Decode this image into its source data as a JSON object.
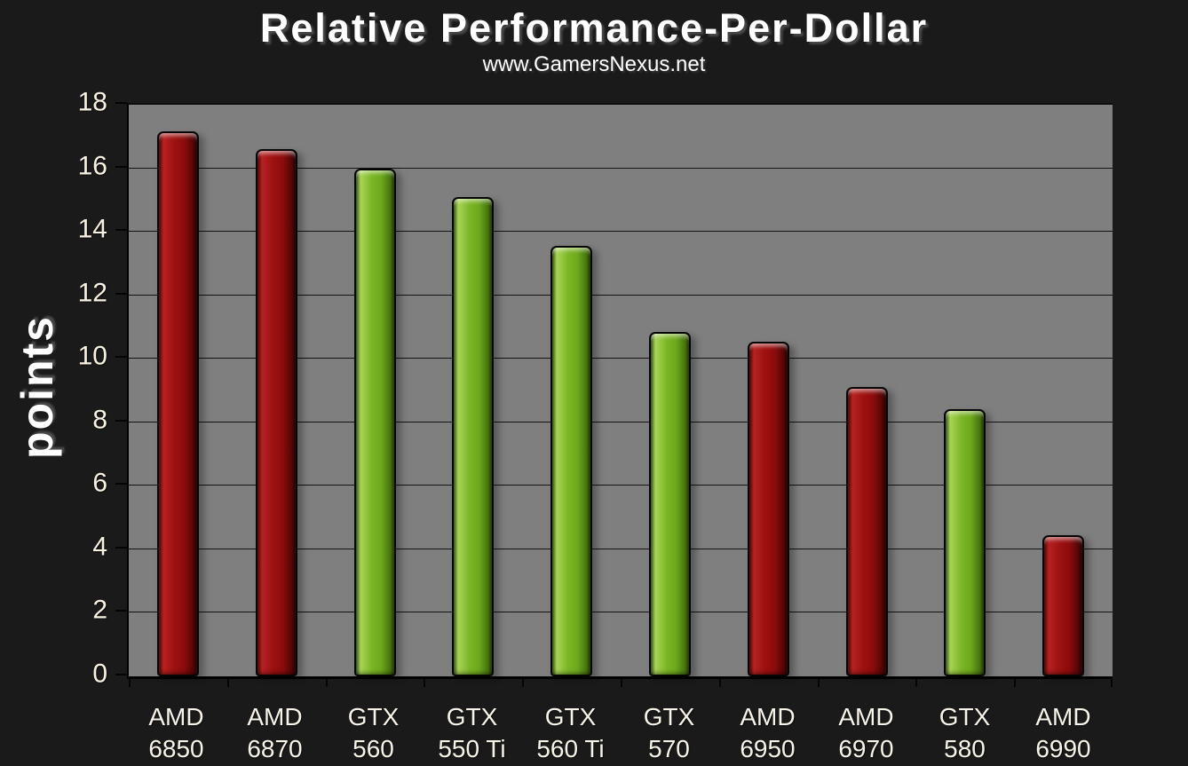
{
  "header": {
    "title": "Relative Performance-Per-Dollar",
    "subtitle": "www.GamersNexus.net"
  },
  "chart_data": {
    "type": "bar",
    "title": "Relative Performance-Per-Dollar",
    "subtitle": "www.GamersNexus.net",
    "xlabel": "",
    "ylabel": "points",
    "ylim": [
      0,
      18
    ],
    "yticks": [
      0,
      2,
      4,
      6,
      8,
      10,
      12,
      14,
      16,
      18
    ],
    "grid": true,
    "legend": false,
    "categories": [
      "AMD 6850",
      "AMD 6870",
      "GTX 560",
      "GTX 550 Ti",
      "GTX 560 Ti",
      "GTX 570",
      "AMD 6950",
      "AMD 6970",
      "GTX 580",
      "AMD 6990"
    ],
    "values": [
      17.15,
      16.6,
      16.0,
      15.1,
      13.55,
      10.85,
      10.55,
      9.1,
      8.4,
      4.45
    ],
    "bar_colors": [
      "red",
      "red",
      "green",
      "green",
      "green",
      "green",
      "red",
      "red",
      "green",
      "red"
    ],
    "colors": {
      "red": "#9c1010",
      "green": "#7ab625",
      "plot_background": "#7f7f7f",
      "page_background": "#1a1a1a",
      "gridline": "#0a0a0a",
      "text": "#f8f1e3",
      "title_text": "#ffffff"
    }
  }
}
